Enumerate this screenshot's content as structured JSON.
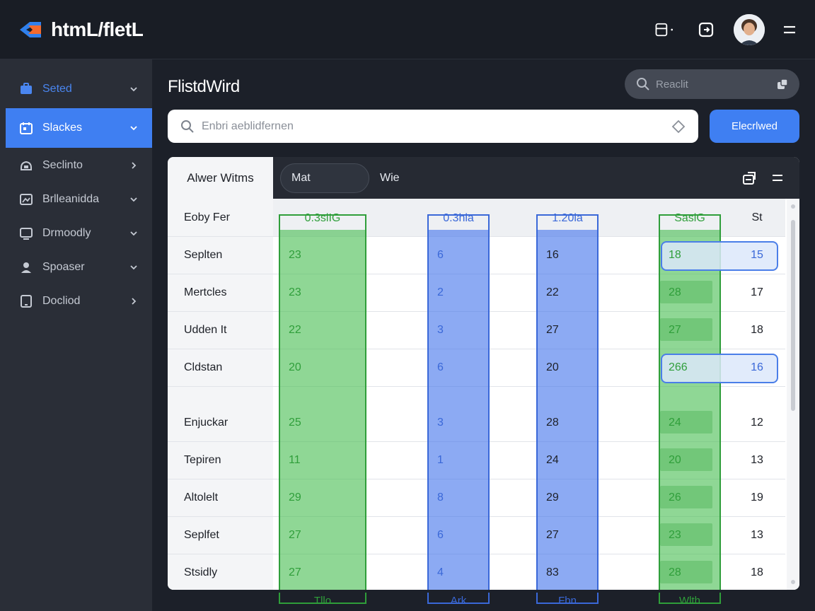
{
  "app": {
    "logo_text": "htmL/fletL"
  },
  "topbar": {
    "icons": [
      "layout-icon",
      "exit-icon",
      "avatar",
      "menu-icon"
    ]
  },
  "sidebar": {
    "items": [
      {
        "label": "Seted",
        "icon": "briefcase-icon",
        "chevron": "down",
        "state": "highlight"
      },
      {
        "label": "Slackes",
        "icon": "calendar-icon",
        "chevron": "down",
        "state": "active"
      },
      {
        "label": "Seclinto",
        "icon": "cloud-icon",
        "chevron": "right",
        "state": "normal"
      },
      {
        "label": "Brlleanidda",
        "icon": "image-icon",
        "chevron": "down",
        "state": "normal"
      },
      {
        "label": "Drmoodly",
        "icon": "monitor-icon",
        "chevron": "down",
        "state": "normal"
      },
      {
        "label": "Spoaser",
        "icon": "user-icon",
        "chevron": "down",
        "state": "normal"
      },
      {
        "label": "Docliod",
        "icon": "tablet-icon",
        "chevron": "right",
        "state": "normal"
      }
    ]
  },
  "main": {
    "title": "FlistdWird",
    "top_search_placeholder": "Reaclit",
    "search_placeholder": "Enbri aeblidfernen",
    "primary_button": "Elecrlwed"
  },
  "table": {
    "tabs": {
      "first": "Alwer Witms",
      "pill": "Mat",
      "plain": "Wie"
    },
    "header_label": "Eoby Fer",
    "columns": [
      {
        "header": "0.3slIG",
        "footer": "Tllo",
        "color": "#2f9e3a"
      },
      {
        "header": "0.3hla",
        "footer": "Ark",
        "color": "#3a68d8"
      },
      {
        "header": "1.20la",
        "footer": "Fbn",
        "color": "#3a68d8"
      },
      {
        "header": "SaslG",
        "footer": "Wlth",
        "color": "#2f9e3a"
      },
      {
        "header": "St",
        "footer": "",
        "color": "#1d2027"
      }
    ],
    "rows": [
      {
        "label": "Seplten",
        "values": [
          "23",
          "6",
          "16",
          "18",
          "15"
        ],
        "highlight": true
      },
      {
        "label": "Mertcles",
        "values": [
          "23",
          "2",
          "22",
          "28",
          "17"
        ],
        "highlight": false
      },
      {
        "label": "Udden It",
        "values": [
          "22",
          "3",
          "27",
          "27",
          "18"
        ],
        "highlight": false
      },
      {
        "label": "Cldstan",
        "values": [
          "20",
          "6",
          "20",
          "266",
          "16"
        ],
        "highlight": true
      },
      {
        "label": "Enjuckar",
        "values": [
          "25",
          "3",
          "28",
          "24",
          "12"
        ],
        "highlight": false
      },
      {
        "label": "Tepiren",
        "values": [
          "11",
          "1",
          "24",
          "20",
          "13"
        ],
        "highlight": false
      },
      {
        "label": "Altolelt",
        "values": [
          "29",
          "8",
          "29",
          "26",
          "19"
        ],
        "highlight": false
      },
      {
        "label": "Seplfet",
        "values": [
          "27",
          "6",
          "27",
          "23",
          "13"
        ],
        "highlight": false
      },
      {
        "label": "Stsidly",
        "values": [
          "27",
          "4",
          "83",
          "28",
          "18"
        ],
        "highlight": false
      }
    ]
  },
  "colors": {
    "accent": "#3f7ff2",
    "green_col": "rgba(74, 190, 84, 0.62)",
    "blue_col": "rgba(70, 118, 236, 0.62)",
    "green_text": "#2f9e3a",
    "blue_text": "#3a68d8"
  }
}
